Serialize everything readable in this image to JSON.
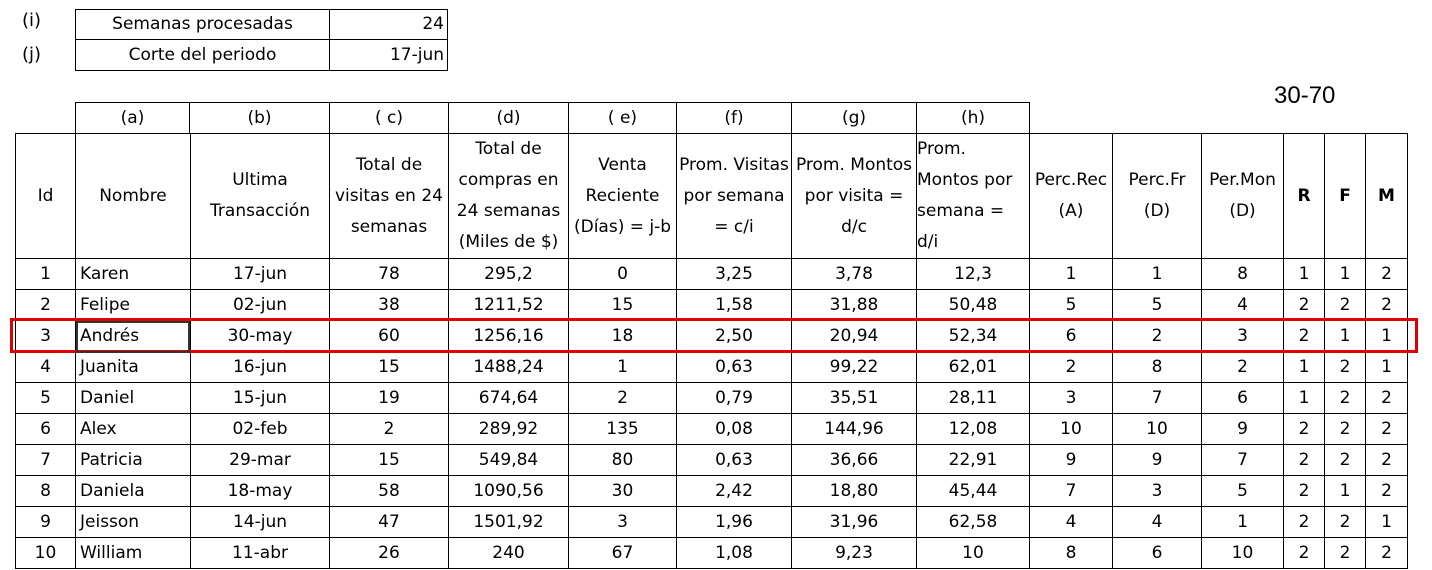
{
  "params": [
    {
      "marker": "(i)",
      "label": "Semanas procesadas",
      "value": "24"
    },
    {
      "marker": "(j)",
      "label": "Corte del periodo",
      "value": "17-jun"
    }
  ],
  "ratio_label": "30-70",
  "col_letters": [
    "(a)",
    "(b)",
    "( c)",
    "(d)",
    "( e)",
    "(f)",
    "(g)",
    "(h)"
  ],
  "headers": [
    "Id",
    "Nombre",
    "Ultima Transacción",
    "Total de visitas en 24 semanas",
    "Total de compras en 24 semanas (Miles de $)",
    "Venta Reciente (Días) = j-b",
    "Prom. Visitas por semana = c/i",
    "Prom. Montos por visita = d/c",
    "Prom. Montos por semana = d/i",
    "Perc.Rec (A)",
    "Perc.Fr (D)",
    "Per.Mon (D)",
    "R",
    "F",
    "M"
  ],
  "rows": [
    [
      "1",
      "Karen",
      "17-jun",
      "78",
      "295,2",
      "0",
      "3,25",
      "3,78",
      "12,3",
      "1",
      "1",
      "8",
      "1",
      "1",
      "2"
    ],
    [
      "2",
      "Felipe",
      "02-jun",
      "38",
      "1211,52",
      "15",
      "1,58",
      "31,88",
      "50,48",
      "5",
      "5",
      "4",
      "2",
      "2",
      "2"
    ],
    [
      "3",
      "Andrés",
      "30-may",
      "60",
      "1256,16",
      "18",
      "2,50",
      "20,94",
      "52,34",
      "6",
      "2",
      "3",
      "2",
      "1",
      "1"
    ],
    [
      "4",
      "Juanita",
      "16-jun",
      "15",
      "1488,24",
      "1",
      "0,63",
      "99,22",
      "62,01",
      "2",
      "8",
      "2",
      "1",
      "2",
      "1"
    ],
    [
      "5",
      "Daniel",
      "15-jun",
      "19",
      "674,64",
      "2",
      "0,79",
      "35,51",
      "28,11",
      "3",
      "7",
      "6",
      "1",
      "2",
      "2"
    ],
    [
      "6",
      "Alex",
      "02-feb",
      "2",
      "289,92",
      "135",
      "0,08",
      "144,96",
      "12,08",
      "10",
      "10",
      "9",
      "2",
      "2",
      "2"
    ],
    [
      "7",
      "Patricia",
      "29-mar",
      "15",
      "549,84",
      "80",
      "0,63",
      "36,66",
      "22,91",
      "9",
      "9",
      "7",
      "2",
      "2",
      "2"
    ],
    [
      "8",
      "Daniela",
      "18-may",
      "58",
      "1090,56",
      "30",
      "2,42",
      "18,80",
      "45,44",
      "7",
      "3",
      "5",
      "2",
      "1",
      "2"
    ],
    [
      "9",
      "Jeisson",
      "14-jun",
      "47",
      "1501,92",
      "3",
      "1,96",
      "31,96",
      "62,58",
      "4",
      "4",
      "1",
      "2",
      "2",
      "1"
    ],
    [
      "10",
      "William",
      "11-abr",
      "26",
      "240",
      "67",
      "1,08",
      "9,23",
      "10",
      "8",
      "6",
      "10",
      "2",
      "2",
      "2"
    ]
  ],
  "highlight_color": "#e00000"
}
